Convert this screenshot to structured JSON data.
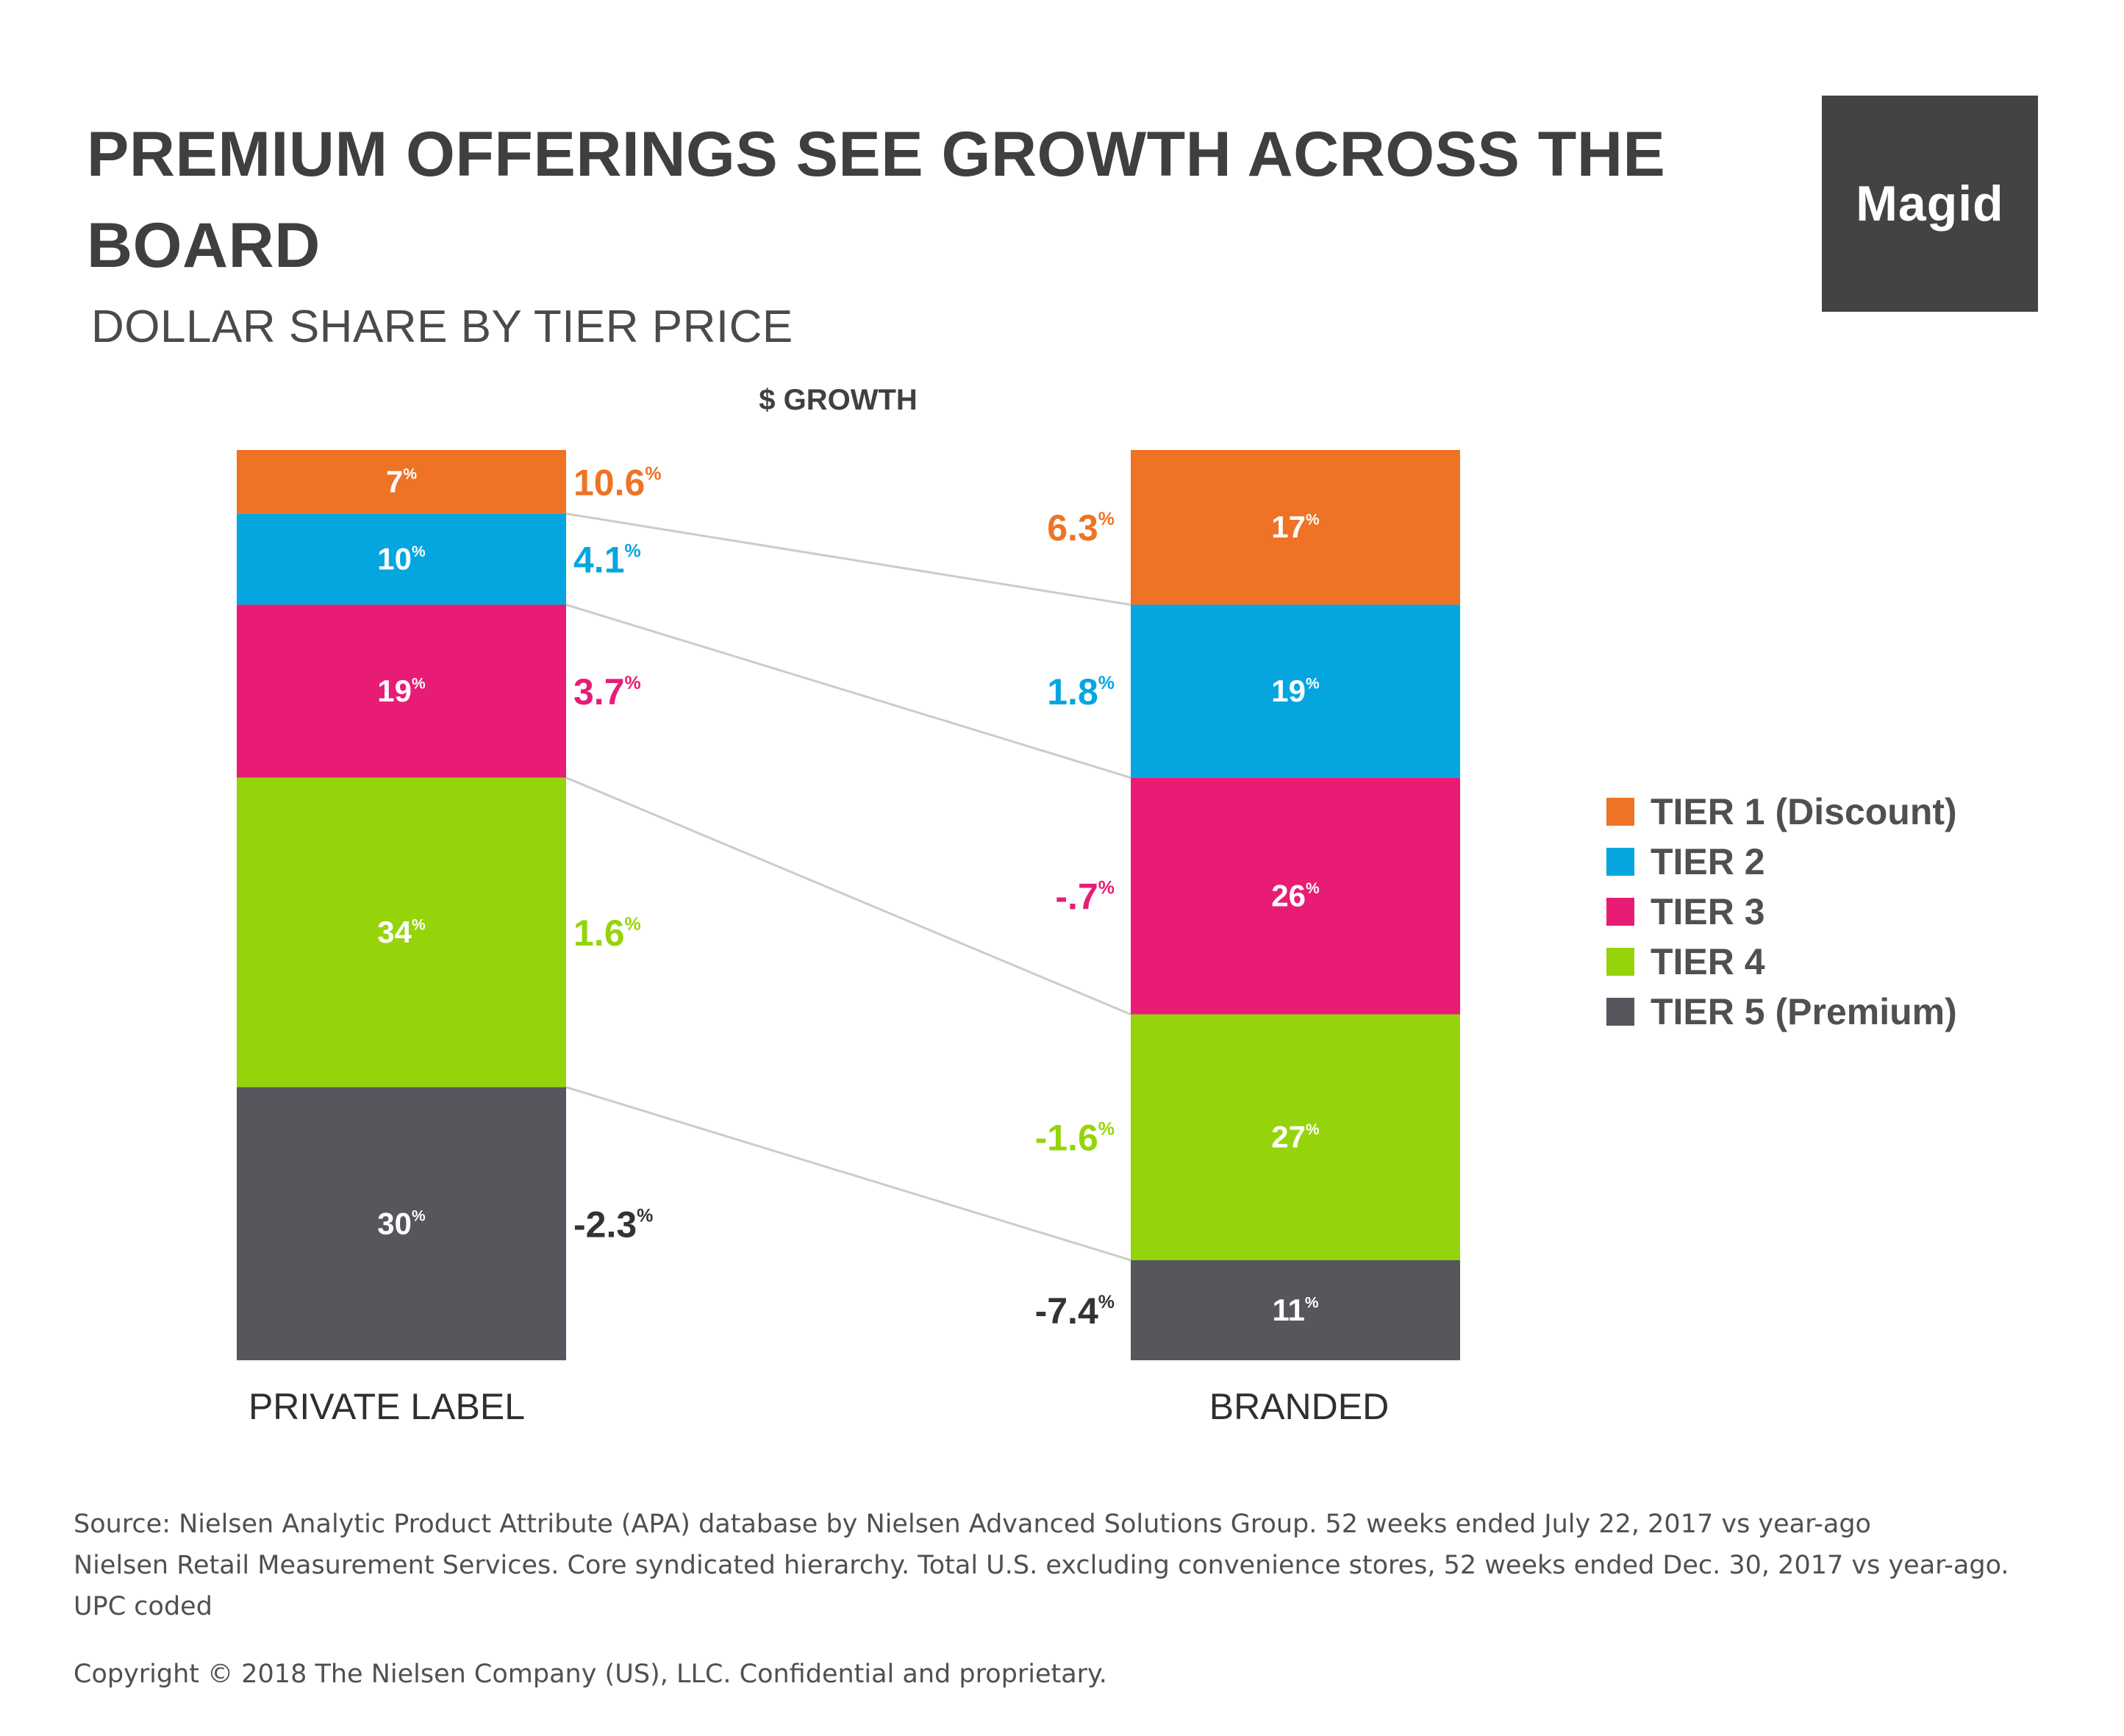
{
  "header": {
    "title": "PREMIUM OFFERINGS SEE GROWTH ACROSS THE BOARD",
    "subtitle": "DOLLAR SHARE BY TIER PRICE",
    "logo_text": "Magid"
  },
  "colors": {
    "tier1": "#EE7325",
    "tier2": "#05A6DF",
    "tier3": "#E81C75",
    "tier4": "#95D40A",
    "tier5": "#55575D",
    "connector": "#CCCCCC",
    "label_dark": "#333333"
  },
  "chart_data": {
    "type": "bar",
    "stacked": true,
    "normalized_percent": true,
    "growth_header": "$ GROWTH",
    "pct_symbol": "%",
    "categories": [
      "PRIVATE LABEL",
      "BRANDED"
    ],
    "series": [
      {
        "name": "TIER 1 (Discount)",
        "color_key": "tier1",
        "share": [
          7,
          17
        ],
        "share_labels": [
          "7",
          "17"
        ],
        "growth": [
          10.6,
          6.3
        ],
        "growth_labels": [
          "10.6",
          "6.3"
        ]
      },
      {
        "name": "TIER 2",
        "color_key": "tier2",
        "share": [
          10,
          19
        ],
        "share_labels": [
          "10",
          "19"
        ],
        "growth": [
          4.1,
          1.8
        ],
        "growth_labels": [
          "4.1",
          "1.8"
        ]
      },
      {
        "name": "TIER 3",
        "color_key": "tier3",
        "share": [
          19,
          26
        ],
        "share_labels": [
          "19",
          "26"
        ],
        "growth": [
          3.7,
          -0.7
        ],
        "growth_labels": [
          "3.7",
          "-.7"
        ]
      },
      {
        "name": "TIER 4",
        "color_key": "tier4",
        "share": [
          34,
          27
        ],
        "share_labels": [
          "34",
          "27"
        ],
        "growth": [
          1.6,
          -1.6
        ],
        "growth_labels": [
          "1.6",
          "-1.6"
        ]
      },
      {
        "name": "TIER 5 (Premium)",
        "color_key": "tier5",
        "share": [
          30,
          11
        ],
        "share_labels": [
          "30",
          "11"
        ],
        "growth": [
          -2.3,
          -7.4
        ],
        "growth_labels": [
          "-2.3",
          "-7.4"
        ]
      }
    ]
  },
  "footer": {
    "source_lines": [
      "Source: Nielsen Analytic Product Attribute (APA) database by Nielsen Advanced Solutions Group. 52 weeks ended July 22, 2017 vs year-ago",
      "Nielsen Retail Measurement Services. Core syndicated hierarchy. Total U.S. excluding convenience stores, 52 weeks ended Dec. 30, 2017 vs year-ago.",
      "UPC coded"
    ],
    "copyright": "Copyright © 2018 The Nielsen Company (US), LLC. Confidential and proprietary."
  }
}
